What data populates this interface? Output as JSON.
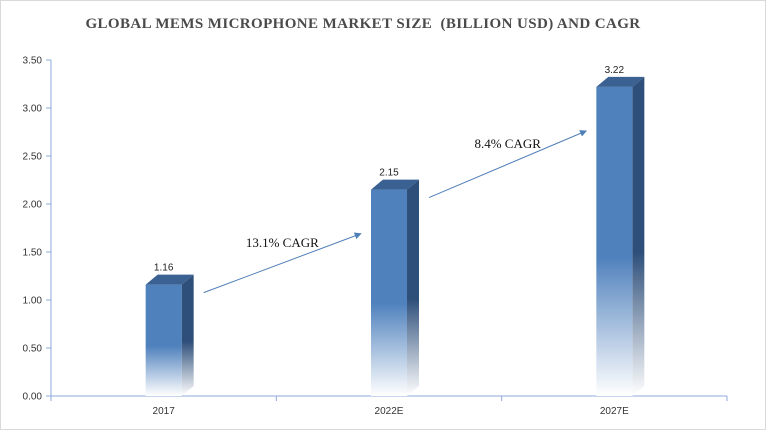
{
  "chart_data": {
    "type": "bar",
    "title": "GLOBAL MEMS MICROPHONE MARKET SIZE  (BILLION USD) AND CAGR",
    "categories": [
      "2017",
      "2022E",
      "2027E"
    ],
    "values": [
      1.16,
      2.15,
      3.22
    ],
    "data_labels": [
      "1.16",
      "2.15",
      "3.22"
    ],
    "ylim": [
      0,
      3.5
    ],
    "yticks": [
      "0.00",
      "0.50",
      "1.00",
      "1.50",
      "2.00",
      "2.50",
      "3.00",
      "3.50"
    ],
    "grid": false,
    "style": "3d-bar-gradient",
    "annotations": [
      {
        "text": "13.1% CAGR",
        "from": "2017",
        "to": "2022E"
      },
      {
        "text": "8.4% CAGR",
        "from": "2022E",
        "to": "2027E"
      }
    ],
    "colors": {
      "bar_front": "#4f81bd",
      "bar_side": "#2e4f7a",
      "bar_top": "#3a6191",
      "axis": "#8faadc",
      "arrow": "#4f7fb8"
    }
  }
}
